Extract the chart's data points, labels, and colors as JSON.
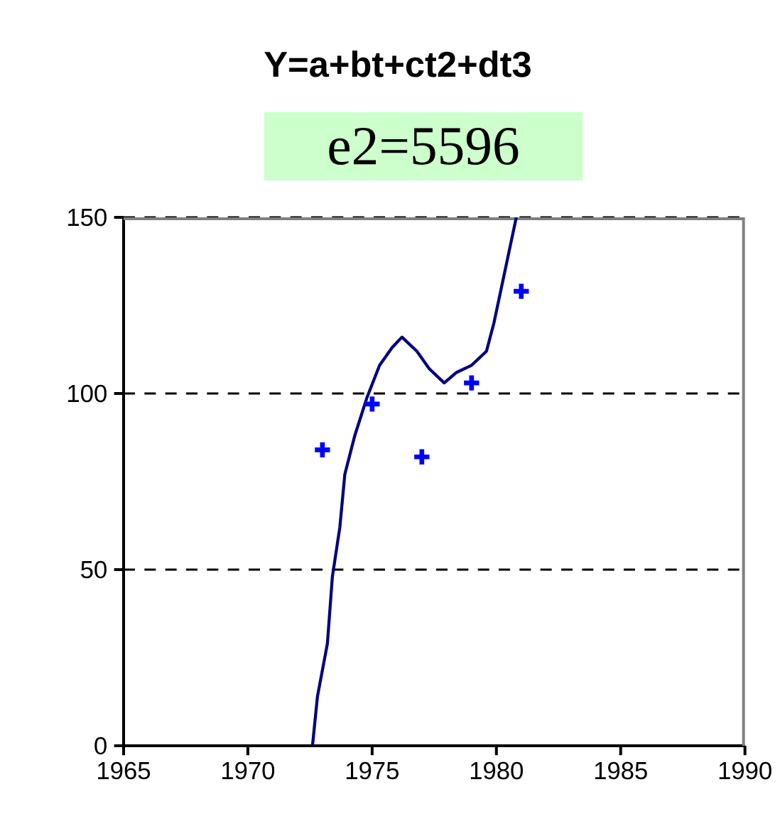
{
  "chart_data": {
    "type": "scatter",
    "title": "Y=a+bt+ct2+dt3",
    "annotations": [
      "e2=5596"
    ],
    "xlim": [
      1965,
      1990
    ],
    "xticks": [
      1965,
      1970,
      1975,
      1980,
      1985,
      1990
    ],
    "ylim": [
      0,
      150
    ],
    "yticks": [
      0,
      50,
      100,
      150
    ],
    "grid": "y",
    "series": [
      {
        "type": "scatter",
        "color": "#0000ff",
        "marker": "cross",
        "x": [
          1973,
          1975,
          1977,
          1979,
          1981
        ],
        "values": [
          84,
          97,
          82,
          103,
          129
        ]
      },
      {
        "type": "line",
        "color": "#000080",
        "marker": "none",
        "line_style": "solid",
        "x": [
          1972.6,
          1972.8,
          1973.2,
          1973.4,
          1973.7,
          1973.9,
          1974.3,
          1974.8,
          1975.3,
          1975.8,
          1976.2,
          1976.8,
          1977.3,
          1977.9,
          1978.4,
          1979.0,
          1979.6,
          1979.9,
          1980.2,
          1980.5,
          1980.8
        ],
        "values": [
          0,
          14,
          29,
          48,
          62,
          77,
          88,
          99,
          108,
          113,
          116,
          112,
          107,
          103,
          106,
          108,
          112,
          120,
          130,
          140,
          150
        ]
      }
    ]
  }
}
